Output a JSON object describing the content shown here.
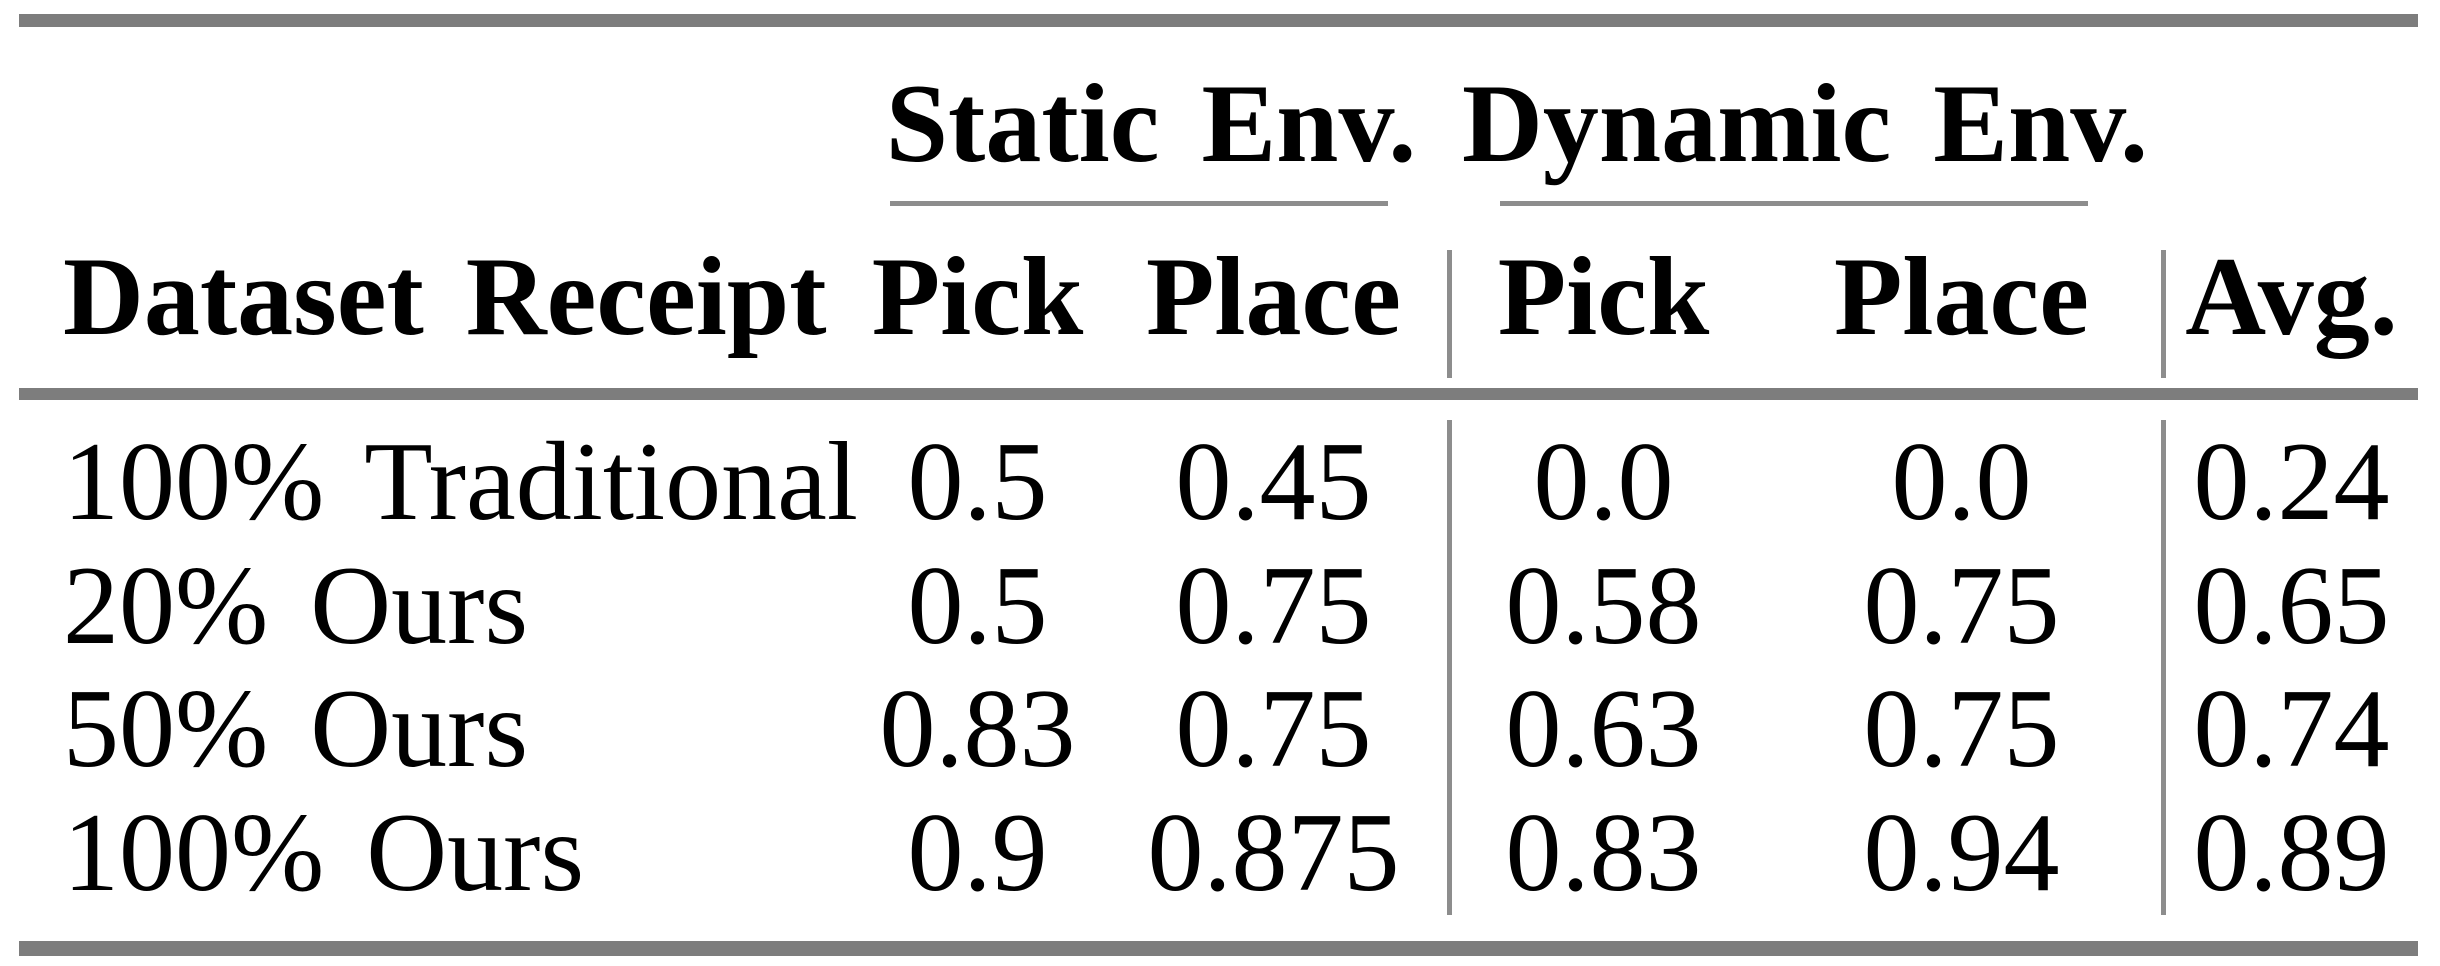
{
  "figure": {
    "kind": "paper-results-table",
    "background_color": "#ffffff",
    "text_color": "#000000",
    "rule_color": "#7d7d7d",
    "separator_color": "#8d8d8d"
  },
  "table": {
    "column_groups": [
      {
        "label": "Static Env.",
        "spans": [
          "Pick",
          "Place"
        ]
      },
      {
        "label": "Dynamic Env.",
        "spans": [
          "Pick",
          "Place"
        ]
      }
    ],
    "columns": [
      "Dataset Receipt",
      "Pick",
      "Place",
      "Pick",
      "Place",
      "Avg."
    ],
    "rows": [
      {
        "cells": [
          "100% Traditional",
          "0.5",
          "0.45",
          "0.0",
          "0.0",
          "0.24"
        ]
      },
      {
        "cells": [
          "20% Ours",
          "0.5",
          "0.75",
          "0.58",
          "0.75",
          "0.65"
        ]
      },
      {
        "cells": [
          "50% Ours",
          "0.83",
          "0.75",
          "0.63",
          "0.75",
          "0.74"
        ]
      },
      {
        "cells": [
          "100% Ours",
          "0.9",
          "0.875",
          "0.83",
          "0.94",
          "0.89"
        ]
      }
    ]
  },
  "chart_data": {
    "type": "table",
    "title": "",
    "row_header": "Dataset Receipt",
    "column_groups": [
      "Static Env.",
      "Dynamic Env."
    ],
    "columns": [
      "Static Env. Pick",
      "Static Env. Place",
      "Dynamic Env. Pick",
      "Dynamic Env. Place",
      "Avg."
    ],
    "categories": [
      "100% Traditional",
      "20% Ours",
      "50% Ours",
      "100% Ours"
    ],
    "series": [
      {
        "name": "Static Env. Pick",
        "values": [
          0.5,
          0.5,
          0.83,
          0.9
        ]
      },
      {
        "name": "Static Env. Place",
        "values": [
          0.45,
          0.75,
          0.75,
          0.875
        ]
      },
      {
        "name": "Dynamic Env. Pick",
        "values": [
          0.0,
          0.58,
          0.63,
          0.83
        ]
      },
      {
        "name": "Dynamic Env. Place",
        "values": [
          0.0,
          0.75,
          0.75,
          0.94
        ]
      },
      {
        "name": "Avg.",
        "values": [
          0.24,
          0.65,
          0.74,
          0.89
        ]
      }
    ]
  }
}
